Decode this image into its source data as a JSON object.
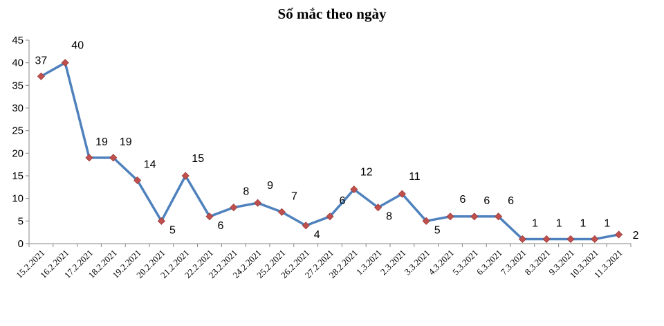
{
  "chart_data": {
    "type": "line",
    "title": "Số mắc theo ngày",
    "xlabel": "",
    "ylabel": "",
    "ylim": [
      0,
      45
    ],
    "yticks": [
      0,
      5,
      10,
      15,
      20,
      25,
      30,
      35,
      40,
      45
    ],
    "grid": false,
    "legend": "none",
    "categories": [
      "15.2.2021",
      "16.2.2021",
      "17.2.2021",
      "18.2.2021",
      "19.2.2021",
      "20.2.2021",
      "21.2.2021",
      "22.2.2021",
      "23.2.2021",
      "24.2.2021",
      "25.2.2021",
      "26.2.2021",
      "27.2.2021",
      "28.2.2021",
      "1.3.2021",
      "2.3.2021",
      "3.3.2021",
      "4.3.2021",
      "5.3.2021",
      "6.3.2021",
      "7.3.2021",
      "8.3.2021",
      "9.3.2021",
      "10.3.2021",
      "11.3.2021"
    ],
    "series": [
      {
        "values": [
          37,
          40,
          19,
          19,
          14,
          5,
          15,
          6,
          8,
          9,
          7,
          4,
          6,
          12,
          8,
          11,
          5,
          6,
          6,
          6,
          1,
          1,
          1,
          1,
          2
        ],
        "line_color": "#4F81BD",
        "marker_color": "#C0504D"
      }
    ]
  }
}
